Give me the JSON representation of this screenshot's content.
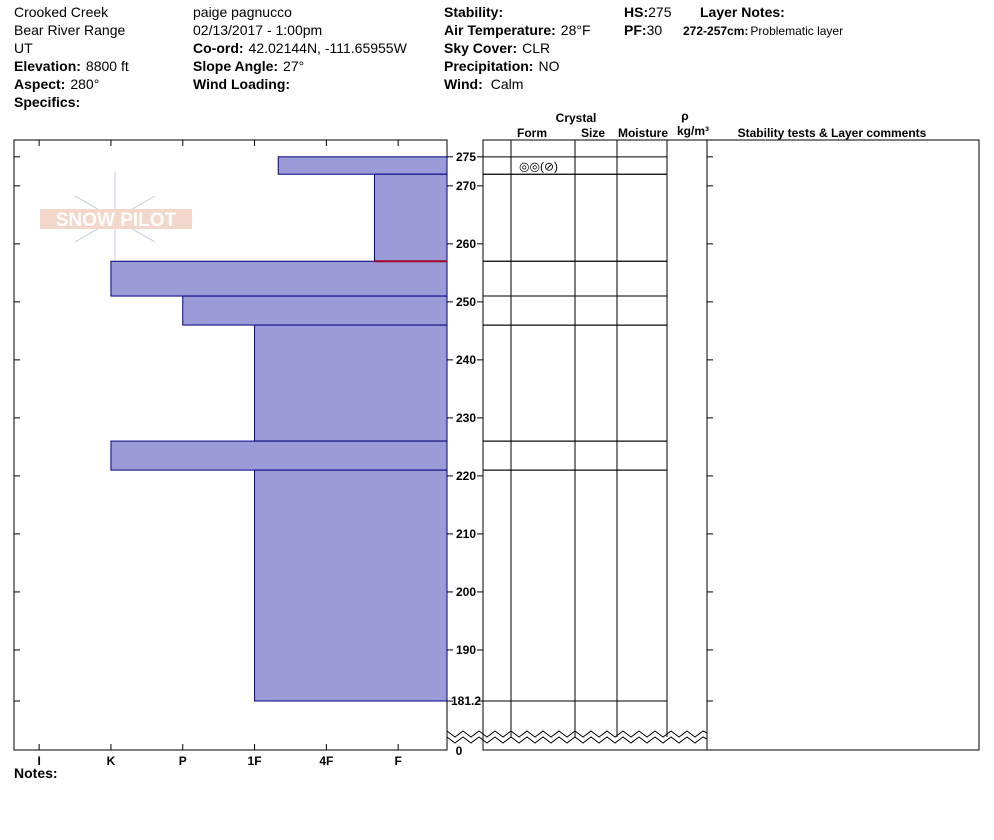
{
  "header": {
    "location": "Crooked Creek",
    "range": "Bear River Range",
    "state": "UT",
    "elevation_label": "Elevation:",
    "elevation": "8800 ft",
    "aspect_label": "Aspect:",
    "aspect": "280°",
    "specifics_label": "Specifics:",
    "observer": "paige pagnucco",
    "datetime": "02/13/2017 - 1:00pm",
    "coord_label": "Co-ord:",
    "coord": "42.02144N, -111.65955W",
    "slope_label": "Slope Angle:",
    "slope": "27°",
    "wind_loading_label": "Wind Loading:",
    "stability_label": "Stability:",
    "air_temp_label": "Air Temperature:",
    "air_temp": "28°F",
    "sky_label": "Sky Cover:",
    "sky": "CLR",
    "precip_label": "Precipitation:",
    "precip": "NO",
    "wind_label": "Wind:",
    "wind": "Calm",
    "hs_label": "HS:",
    "hs": 275,
    "pf_label": "PF:",
    "pf": 30,
    "layer_notes_label": "Layer Notes:",
    "layer_note_range": "272-257cm:",
    "layer_note": "Problematic layer"
  },
  "logo": "SNOW PILOT",
  "notes_label": "Notes:",
  "table_headers": {
    "crystal": "Crystal",
    "form": "Form",
    "size": "Size",
    "moisture": "Moisture",
    "rho": "ρ",
    "density_unit": "kg/m³",
    "comments": "Stability tests & Layer comments"
  },
  "chart_data": {
    "type": "bar",
    "orientation": "horizontal",
    "color": "#9b9bd7",
    "edge_color": "#00007f",
    "depth_top": [
      275,
      272,
      257,
      251,
      246,
      226,
      221
    ],
    "depth_bottom": [
      272,
      257,
      251,
      246,
      226,
      221,
      181.2
    ],
    "values": [
      2.67,
      1.33,
      5,
      4,
      3,
      5,
      3
    ],
    "forms": [
      "◎◎(⊘)",
      null,
      null,
      null,
      null,
      null,
      null
    ],
    "xlim": [
      6.35,
      0.32
    ],
    "xticks": [
      {
        "value": 6,
        "label": "I"
      },
      {
        "value": 5,
        "label": "K"
      },
      {
        "value": 4,
        "label": "P"
      },
      {
        "value": 3,
        "label": "1F"
      },
      {
        "value": 2,
        "label": "4F"
      },
      {
        "value": 1,
        "label": "F"
      }
    ],
    "ylim": [
      181.2,
      277.9
    ],
    "yticks": [
      275,
      270,
      260,
      250,
      240,
      230,
      220,
      210,
      200,
      190,
      181.2
    ],
    "y_break_tick": 0,
    "highlight": {
      "depth": 257,
      "color": "#a0002a"
    }
  }
}
